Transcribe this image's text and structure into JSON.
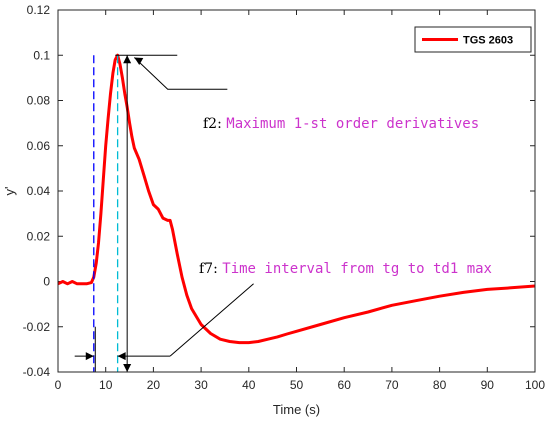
{
  "chart_data": {
    "type": "line",
    "title": "",
    "xlabel": "Time (s)",
    "ylabel": "y'",
    "xlim": [
      0,
      100
    ],
    "ylim": [
      -0.04,
      0.12
    ],
    "xticks": [
      "0",
      "10",
      "20",
      "30",
      "40",
      "50",
      "60",
      "70",
      "80",
      "90",
      "100"
    ],
    "yticks": [
      "-0.04",
      "-0.02",
      "0",
      "0.02",
      "0.04",
      "0.06",
      "0.08",
      "0.1",
      "0.12"
    ],
    "grid": false,
    "legend": {
      "position": "top-right",
      "entries": [
        "TGS 2603"
      ]
    },
    "series": [
      {
        "name": "TGS 2603",
        "color": "#ff0000",
        "x": [
          0,
          1,
          2,
          3,
          4,
          5,
          6,
          7,
          7.5,
          8,
          8.5,
          9,
          9.5,
          10,
          10.5,
          11,
          11.5,
          12,
          12.5,
          13,
          13.5,
          14,
          14.5,
          15,
          15.5,
          16,
          17,
          18,
          19,
          20,
          21,
          22,
          23,
          23.5,
          24,
          25,
          26,
          27,
          28,
          30,
          32,
          34,
          36,
          38,
          40,
          42,
          44,
          46,
          48,
          50,
          55,
          60,
          65,
          70,
          75,
          80,
          85,
          90,
          95,
          100
        ],
        "y": [
          -0.001,
          0,
          -0.001,
          0,
          -0.001,
          -0.001,
          -0.001,
          -0.0005,
          0.002,
          0.008,
          0.017,
          0.03,
          0.045,
          0.06,
          0.072,
          0.083,
          0.092,
          0.098,
          0.1,
          0.096,
          0.09,
          0.083,
          0.077,
          0.07,
          0.064,
          0.059,
          0.054,
          0.047,
          0.04,
          0.034,
          0.032,
          0.028,
          0.027,
          0.027,
          0.023,
          0.012,
          0.002,
          -0.006,
          -0.012,
          -0.019,
          -0.023,
          -0.0255,
          -0.0265,
          -0.027,
          -0.027,
          -0.0265,
          -0.0255,
          -0.0245,
          -0.0232,
          -0.022,
          -0.019,
          -0.016,
          -0.0135,
          -0.0105,
          -0.0085,
          -0.0065,
          -0.0048,
          -0.0035,
          -0.0028,
          -0.002
        ]
      }
    ],
    "markers": {
      "tg_line_x": 7.5,
      "tg_line_color": "#0000ff",
      "td1max_line_x": 12.5,
      "td1max_line_color": "#00bcd4",
      "peak_value": 0.1,
      "peak_time": 12.5
    },
    "annotations": {
      "f2": {
        "prefix": "f2: ",
        "text": "Maximum 1-st order derivatives",
        "color": "#cc33cc"
      },
      "f7": {
        "prefix": "f7: ",
        "text": "Time interval from tg to td1 max",
        "color": "#cc33cc"
      }
    }
  }
}
